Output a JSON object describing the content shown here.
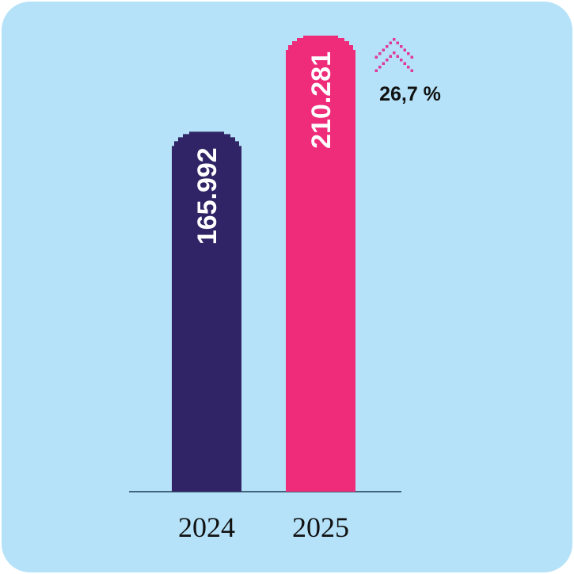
{
  "chart_data": {
    "type": "bar",
    "categories": [
      "2024",
      "2025"
    ],
    "values": [
      165992,
      210281
    ],
    "value_labels": [
      "165.992",
      "210.281"
    ],
    "colors": [
      "#302466",
      "#ee2c7a"
    ],
    "annotation": {
      "text": "26,7 %",
      "icon": "double-chevron-up-icon",
      "color": "#e0399a"
    },
    "title": "",
    "xlabel": "",
    "ylabel": "",
    "grid": false
  },
  "background_color": "#b5e2f8"
}
